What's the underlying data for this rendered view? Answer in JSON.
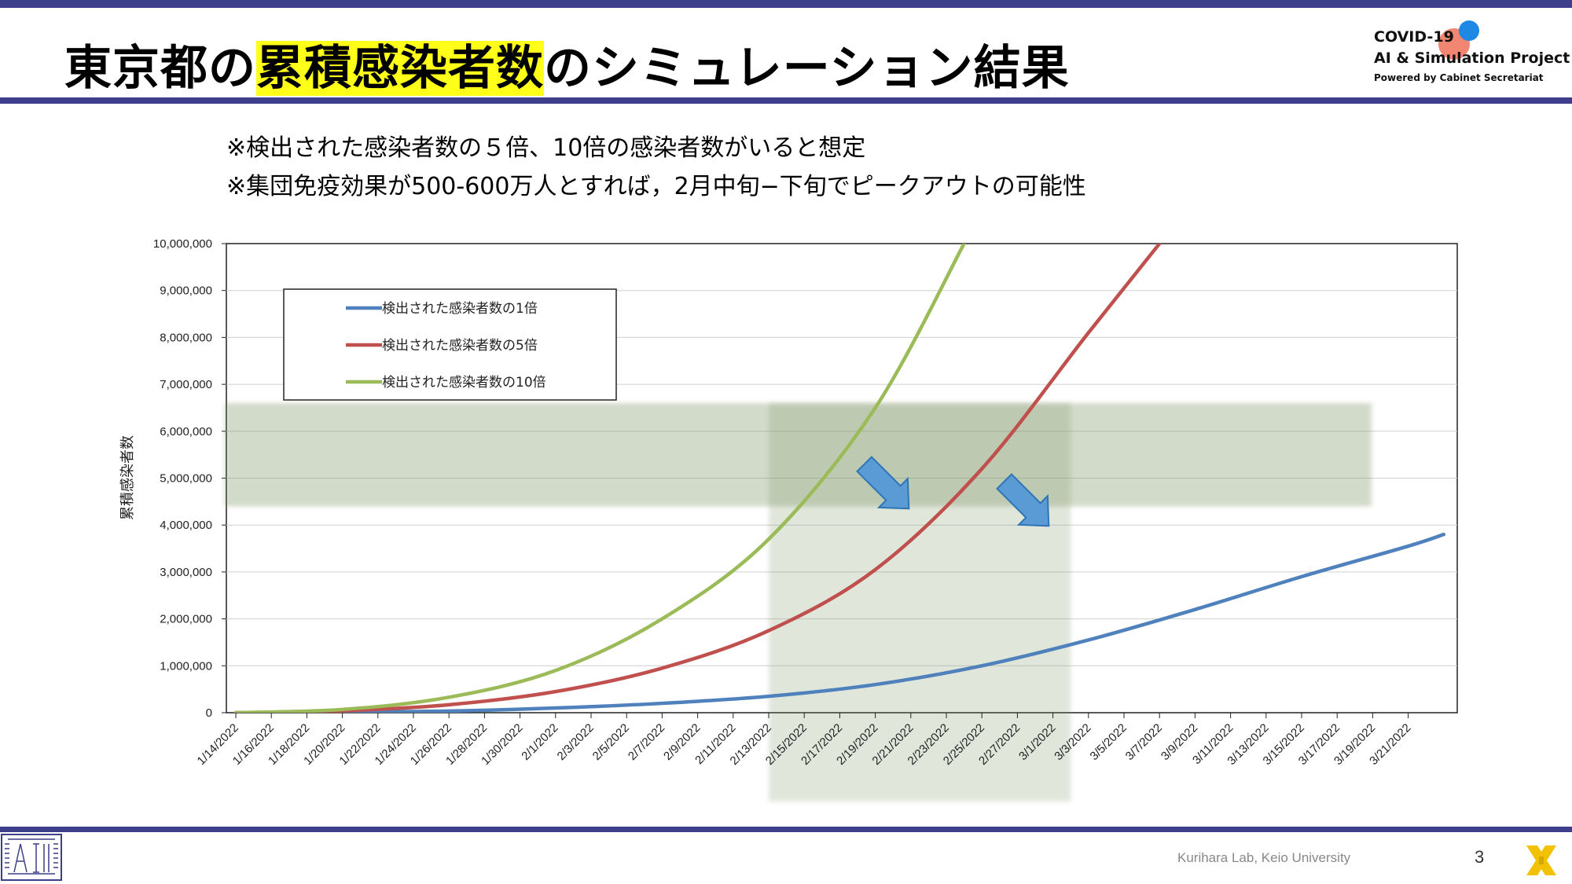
{
  "slide": {
    "title_pre": "東京都の",
    "title_highlight": "累積感染者数",
    "title_post": "のシミュレーション結果",
    "note1": "※検出された感染者数の５倍、10倍の感染者数がいると想定",
    "note2": "※集団免疫効果が500-600万人とすれば，2月中旬−下旬でピークアウトの可能性",
    "logo_line1": "COVID-19",
    "logo_line2": "AI & Simulation Project",
    "logo_line3": "Powered by Cabinet Secretariat",
    "footer": "Kurihara Lab, Keio University",
    "page_number": "3",
    "colors": {
      "bar": "#3d3f8a",
      "highlight": "#ffff1a",
      "band": "#7a9160"
    },
    "icons": [
      "ai-logo-icon",
      "x-logo-icon",
      "arrow-down-right-icon"
    ]
  },
  "chart_data": {
    "type": "line",
    "ylabel": "累積感染者数",
    "xlabel": "",
    "ylim": [
      0,
      10000000
    ],
    "y_ticks": [
      "0",
      "1,000,000",
      "2,000,000",
      "3,000,000",
      "4,000,000",
      "5,000,000",
      "6,000,000",
      "7,000,000",
      "8,000,000",
      "9,000,000",
      "10,000,000"
    ],
    "x_ticks": [
      "1/14/2022",
      "1/16/2022",
      "1/18/2022",
      "1/20/2022",
      "1/22/2022",
      "1/24/2022",
      "1/26/2022",
      "1/28/2022",
      "1/30/2022",
      "2/1/2022",
      "2/3/2022",
      "2/5/2022",
      "2/7/2022",
      "2/9/2022",
      "2/11/2022",
      "2/13/2022",
      "2/15/2022",
      "2/17/2022",
      "2/19/2022",
      "2/21/2022",
      "2/23/2022",
      "2/25/2022",
      "2/27/2022",
      "3/1/2022",
      "3/3/2022",
      "3/5/2022",
      "3/7/2022",
      "3/9/2022",
      "3/11/2022",
      "3/13/2022",
      "3/15/2022",
      "3/17/2022",
      "3/19/2022",
      "3/21/2022"
    ],
    "grid": true,
    "legend_position": "top-left",
    "series": [
      {
        "name": "検出された感染者数の1倍",
        "color": "#4f81bd",
        "x": [
          "1/14/2022",
          "1/20/2022",
          "1/26/2022",
          "2/1/2022",
          "2/7/2022",
          "2/13/2022",
          "2/19/2022",
          "2/25/2022",
          "3/3/2022",
          "3/9/2022",
          "3/15/2022",
          "3/21/2022",
          "3/23/2022"
        ],
        "values": [
          0,
          15000,
          35000,
          100000,
          200000,
          350000,
          600000,
          1000000,
          1550000,
          2200000,
          2900000,
          3550000,
          3800000
        ]
      },
      {
        "name": "検出された感染者数の5倍",
        "color": "#c0504d",
        "x": [
          "1/14/2022",
          "1/20/2022",
          "1/26/2022",
          "2/1/2022",
          "2/7/2022",
          "2/13/2022",
          "2/19/2022",
          "2/25/2022",
          "3/3/2022",
          "3/7/2022"
        ],
        "values": [
          0,
          40000,
          170000,
          450000,
          950000,
          1750000,
          3050000,
          5200000,
          8100000,
          10000000
        ]
      },
      {
        "name": "検出された感染者数の10倍",
        "color": "#9bbb59",
        "x": [
          "1/14/2022",
          "1/20/2022",
          "1/26/2022",
          "2/1/2022",
          "2/7/2022",
          "2/13/2022",
          "2/19/2022",
          "2/24/2022"
        ],
        "values": [
          0,
          70000,
          330000,
          900000,
          2000000,
          3700000,
          6500000,
          10000000
        ]
      }
    ],
    "annotations": {
      "herd_immunity_band_y": [
        4400000,
        6600000
      ],
      "peak_window_x": [
        "2/13/2022",
        "3/2/2022"
      ]
    }
  }
}
